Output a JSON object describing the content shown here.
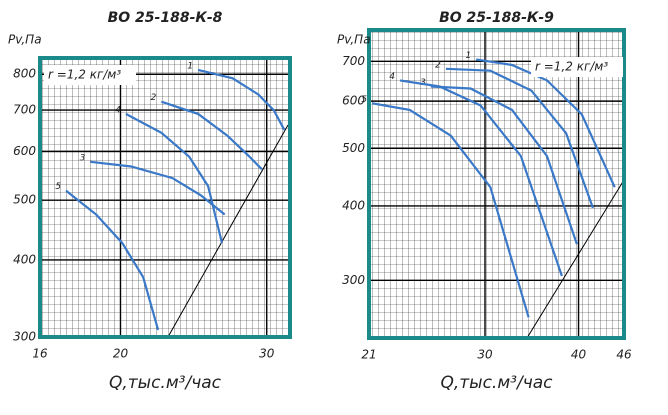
{
  "chart_data": [
    {
      "type": "line",
      "title": "ВО 25-188-К-8",
      "ylabel": "Pv,Па",
      "xlabel": "Q,тыс.м³/час",
      "annotation": "r =1,2 кг/м³",
      "log_x": true,
      "log_y": true,
      "grid": true,
      "xlim": [
        16,
        32
      ],
      "ylim": [
        300,
        850
      ],
      "xticks": [
        16,
        20,
        30
      ],
      "yticks": [
        300,
        400,
        500,
        600,
        700,
        800
      ],
      "series": [
        {
          "name": "1",
          "color": "#3a78c8",
          "x": [
            24.8,
            27.3,
            29.3,
            30.6,
            31.5
          ],
          "values": [
            813,
            788,
            742,
            699,
            650
          ]
        },
        {
          "name": "2",
          "color": "#3a78c8",
          "x": [
            22.4,
            24.8,
            26.9,
            28.5,
            29.6
          ],
          "values": [
            722,
            690,
            636,
            591,
            561
          ]
        },
        {
          "name": "3",
          "color": "#3a78c8",
          "x": [
            18.4,
            20.6,
            23.1,
            25.0,
            26.7
          ],
          "values": [
            577,
            567,
            543,
            509,
            474
          ]
        },
        {
          "name": "4",
          "color": "#3a78c8",
          "x": [
            20.3,
            22.4,
            24.2,
            25.5,
            26.5
          ],
          "values": [
            690,
            643,
            588,
            527,
            426
          ]
        },
        {
          "name": "5",
          "color": "#3a78c8",
          "x": [
            17.2,
            18.7,
            20.1,
            21.3,
            22.2
          ],
          "values": [
            518,
            474,
            426,
            375,
            308
          ]
        }
      ]
    },
    {
      "type": "line",
      "title": "ВО 25-188-К-9",
      "ylabel": "Pv,Па",
      "xlabel": "Q,тыс.м³/час",
      "annotation": "r =1,2 кг/м³",
      "log_x": true,
      "log_y": true,
      "grid": true,
      "xlim": [
        21,
        46
      ],
      "ylim": [
        240,
        790
      ],
      "xticks": [
        21,
        30,
        40,
        46
      ],
      "yticks": [
        300,
        400,
        500,
        600,
        700
      ],
      "series": [
        {
          "name": "1",
          "color": "#3a78c8",
          "x": [
            29.2,
            32.6,
            36.3,
            40.4,
            44.7
          ],
          "values": [
            705,
            690,
            650,
            570,
            430
          ]
        },
        {
          "name": "2",
          "color": "#3a78c8",
          "x": [
            26.6,
            30.5,
            34.6,
            38.5,
            41.8
          ],
          "values": [
            680,
            675,
            625,
            530,
            397
          ]
        },
        {
          "name": "3",
          "color": "#3a78c8",
          "x": [
            25.4,
            28.7,
            32.6,
            36.3,
            39.8
          ],
          "values": [
            635,
            630,
            580,
            485,
            345
          ]
        },
        {
          "name": "4",
          "color": "#3a78c8",
          "x": [
            23.1,
            26.1,
            29.6,
            33.5,
            38.0
          ],
          "values": [
            650,
            635,
            590,
            485,
            305
          ]
        },
        {
          "name": "5",
          "color": "#3a78c8",
          "x": [
            21.2,
            23.8,
            27.0,
            30.5,
            34.3
          ],
          "values": [
            595,
            580,
            525,
            430,
            260
          ]
        }
      ]
    }
  ]
}
